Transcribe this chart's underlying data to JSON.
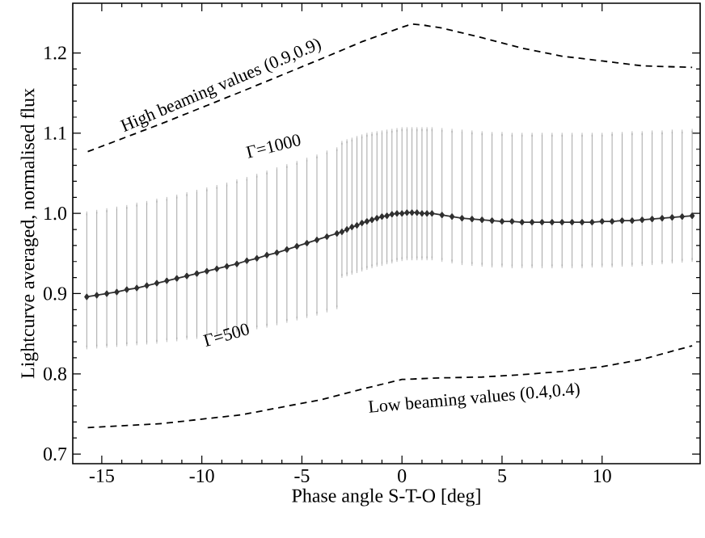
{
  "chart_data": {
    "type": "line",
    "xlabel": "Phase angle S-T-O [deg]",
    "ylabel": "Lightcurve averaged, normalised flux",
    "xlim": [
      -16.45,
      14.9
    ],
    "ylim": [
      0.688,
      1.262
    ],
    "xticks": [
      -15,
      -10,
      -5,
      0,
      5,
      10
    ],
    "yticks": [
      {
        "value": 0.7,
        "label": "0.7"
      },
      {
        "value": 0.8,
        "label": "0.8"
      },
      {
        "value": 0.9,
        "label": "0.9"
      },
      {
        "value": 1.0,
        "label": "1.0"
      },
      {
        "value": 1.1,
        "label": "1.1"
      },
      {
        "value": 1.2,
        "label": "1.2"
      }
    ],
    "series": [
      {
        "color": "#303030",
        "marker": "diamond",
        "line_style": "solid",
        "x": [
          -15.75,
          -15.25,
          -14.75,
          -14.25,
          -13.75,
          -13.25,
          -12.75,
          -12.25,
          -11.75,
          -11.25,
          -10.75,
          -10.25,
          -9.75,
          -9.25,
          -8.75,
          -8.25,
          -7.75,
          -7.25,
          -6.75,
          -6.25,
          -5.75,
          -5.25,
          -4.75,
          -4.25,
          -3.75,
          -3.25,
          -3,
          -2.75,
          -2.5,
          -2.25,
          -2,
          -1.75,
          -1.5,
          -1.25,
          -1,
          -0.75,
          -0.5,
          -0.25,
          0,
          0.25,
          0.5,
          0.75,
          1,
          1.25,
          1.5,
          2,
          2.5,
          3,
          3.5,
          4,
          4.5,
          5,
          5.5,
          6,
          6.5,
          7,
          7.5,
          8,
          8.5,
          9,
          9.5,
          10,
          10.5,
          11,
          11.5,
          12,
          12.5,
          13,
          13.5,
          14,
          14.5
        ],
        "values": [
          0.896,
          0.898,
          0.9,
          0.902,
          0.905,
          0.907,
          0.91,
          0.913,
          0.916,
          0.919,
          0.922,
          0.925,
          0.928,
          0.931,
          0.934,
          0.937,
          0.941,
          0.944,
          0.948,
          0.951,
          0.955,
          0.959,
          0.963,
          0.967,
          0.971,
          0.975,
          0.977,
          0.98,
          0.983,
          0.985,
          0.988,
          0.99,
          0.992,
          0.994,
          0.996,
          0.997,
          0.999,
          1.0,
          1.0,
          1.001,
          1.001,
          1.001,
          1.0,
          1.0,
          1.0,
          0.998,
          0.996,
          0.994,
          0.993,
          0.992,
          0.991,
          0.99,
          0.99,
          0.989,
          0.989,
          0.989,
          0.989,
          0.989,
          0.989,
          0.989,
          0.989,
          0.99,
          0.99,
          0.991,
          0.991,
          0.992,
          0.993,
          0.994,
          0.995,
          0.996,
          0.997
        ],
        "errors": [
          [
            0.833,
            1.0
          ],
          [
            0.834,
            1.002
          ],
          [
            0.835,
            1.004
          ],
          [
            0.836,
            1.006
          ],
          [
            0.837,
            1.008
          ],
          [
            0.838,
            1.011
          ],
          [
            0.839,
            1.013
          ],
          [
            0.84,
            1.016
          ],
          [
            0.842,
            1.018
          ],
          [
            0.843,
            1.021
          ],
          [
            0.845,
            1.024
          ],
          [
            0.846,
            1.027
          ],
          [
            0.848,
            1.03
          ],
          [
            0.85,
            1.033
          ],
          [
            0.852,
            1.036
          ],
          [
            0.854,
            1.04
          ],
          [
            0.856,
            1.043
          ],
          [
            0.858,
            1.047
          ],
          [
            0.86,
            1.051
          ],
          [
            0.863,
            1.055
          ],
          [
            0.866,
            1.059
          ],
          [
            0.869,
            1.063
          ],
          [
            0.872,
            1.067
          ],
          [
            0.875,
            1.071
          ],
          [
            0.879,
            1.076
          ],
          [
            0.883,
            1.08
          ],
          [
            0.922,
            1.088
          ],
          [
            0.924,
            1.09
          ],
          [
            0.926,
            1.092
          ],
          [
            0.928,
            1.094
          ],
          [
            0.93,
            1.096
          ],
          [
            0.932,
            1.098
          ],
          [
            0.934,
            1.099
          ],
          [
            0.936,
            1.1
          ],
          [
            0.937,
            1.101
          ],
          [
            0.939,
            1.102
          ],
          [
            0.94,
            1.103
          ],
          [
            0.942,
            1.104
          ],
          [
            0.943,
            1.105
          ],
          [
            0.944,
            1.105
          ],
          [
            0.944,
            1.105
          ],
          [
            0.944,
            1.105
          ],
          [
            0.944,
            1.105
          ],
          [
            0.944,
            1.105
          ],
          [
            0.944,
            1.105
          ],
          [
            0.942,
            1.104
          ],
          [
            0.94,
            1.103
          ],
          [
            0.938,
            1.102
          ],
          [
            0.937,
            1.101
          ],
          [
            0.936,
            1.1
          ],
          [
            0.935,
            1.099
          ],
          [
            0.935,
            1.099
          ],
          [
            0.934,
            1.098
          ],
          [
            0.934,
            1.098
          ],
          [
            0.934,
            1.098
          ],
          [
            0.934,
            1.098
          ],
          [
            0.934,
            1.098
          ],
          [
            0.934,
            1.098
          ],
          [
            0.934,
            1.098
          ],
          [
            0.934,
            1.098
          ],
          [
            0.935,
            1.098
          ],
          [
            0.935,
            1.098
          ],
          [
            0.935,
            1.099
          ],
          [
            0.936,
            1.099
          ],
          [
            0.936,
            1.1
          ],
          [
            0.937,
            1.1
          ],
          [
            0.938,
            1.101
          ],
          [
            0.939,
            1.101
          ],
          [
            0.94,
            1.102
          ],
          [
            0.941,
            1.102
          ],
          [
            0.942,
            1.103
          ]
        ]
      },
      {
        "color": "#000000",
        "marker": "none",
        "line_style": "dashed",
        "x": [
          -15.7,
          -12,
          -8,
          -4,
          -2,
          0,
          0.5,
          1,
          2,
          4,
          6,
          8,
          10,
          12,
          14.5
        ],
        "values": [
          1.077,
          1.112,
          1.152,
          1.193,
          1.214,
          1.232,
          1.236,
          1.235,
          1.231,
          1.219,
          1.206,
          1.196,
          1.19,
          1.184,
          1.182
        ]
      },
      {
        "color": "#000000",
        "marker": "none",
        "line_style": "dashed",
        "x": [
          -15.7,
          -12,
          -8,
          -4,
          -2,
          0,
          2,
          4,
          6,
          8,
          10,
          12,
          14.5
        ],
        "values": [
          0.733,
          0.738,
          0.749,
          0.768,
          0.781,
          0.793,
          0.795,
          0.796,
          0.799,
          0.803,
          0.809,
          0.818,
          0.835
        ]
      }
    ],
    "annotations": [
      "High beaming values (0.9,0.9)",
      "Γ=1000",
      "Γ=500",
      "Low beaming values (0.4,0.4)"
    ]
  }
}
